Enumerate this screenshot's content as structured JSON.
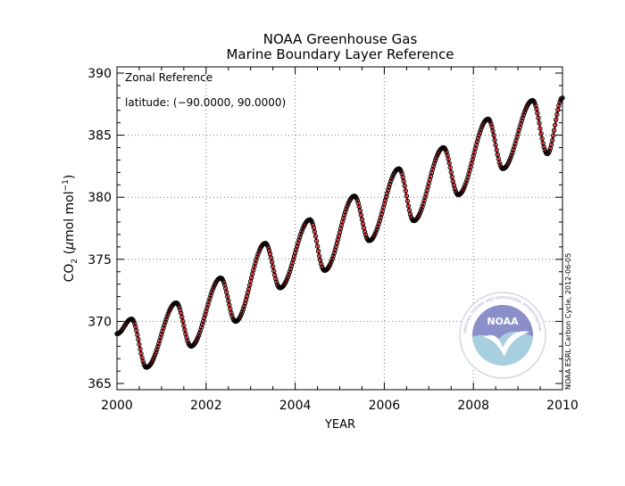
{
  "chart_data": {
    "type": "scatter",
    "title": "NOAA Greenhouse Gas",
    "subtitle": "Marine Boundary Layer Reference",
    "xlabel": "YEAR",
    "ylabel_main": "CO",
    "ylabel_sub": "2",
    "ylabel_unit_open": " (",
    "ylabel_mu": "μ",
    "ylabel_unit_mid": "mol mol",
    "ylabel_sup": "−1",
    "ylabel_unit_close": ")",
    "xlim": [
      2000,
      2010
    ],
    "ylim": [
      364.5,
      390.5
    ],
    "xticks": [
      "2000",
      "2002",
      "2004",
      "2006",
      "2008",
      "2010"
    ],
    "yticks": [
      "365",
      "370",
      "375",
      "380",
      "385",
      "390"
    ],
    "grid": true,
    "annotation_1": "Zonal Reference",
    "annotation_2": "latitude: (−90.0000, 90.0000)",
    "credit": "NOAA ESRL Carbon Cycle, 2012-06-05",
    "logo_text": "NOAA",
    "logo_ring_text": "NATIONAL OCEANIC AND ATMOSPHERIC ADMINISTRATION · U.S. DEPARTMENT OF COMMERCE",
    "colors": {
      "line": "#e8141c",
      "marker": "#000000",
      "logo_top": "#8a8ec9",
      "logo_bottom": "#a8cfe0"
    },
    "series": [
      {
        "name": "",
        "points_per_year": 48,
        "x_start": 2000.0,
        "annual_min": [
          366.3,
          368.0,
          370.0,
          372.7,
          374.1,
          376.5,
          378.1,
          380.2,
          382.3,
          383.5
        ],
        "annual_max": [
          370.2,
          371.5,
          373.5,
          376.3,
          378.2,
          380.1,
          382.3,
          384.0,
          386.3,
          387.8
        ],
        "start_value": 369.0,
        "end_value": 388.0,
        "max_phase": 0.33,
        "min_phase": 0.66
      }
    ]
  }
}
